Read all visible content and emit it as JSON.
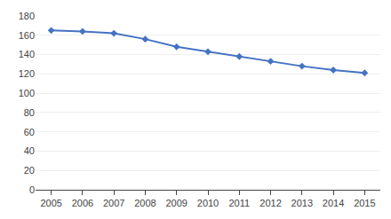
{
  "chart_data": {
    "type": "line",
    "x": [
      2005,
      2006,
      2007,
      2008,
      2009,
      2010,
      2011,
      2012,
      2013,
      2014,
      2015
    ],
    "values": [
      165,
      164,
      162,
      156,
      148,
      143,
      138,
      133,
      128,
      124,
      121
    ],
    "color": "#4472c4",
    "marker": "diamond",
    "xlim": [
      2004.5,
      2015.5
    ],
    "xticks": [
      2005,
      2006,
      2007,
      2008,
      2009,
      2010,
      2011,
      2012,
      2013,
      2014,
      2015
    ],
    "ylim": [
      0,
      180
    ],
    "yticks": [
      0,
      20,
      40,
      60,
      80,
      100,
      120,
      140,
      160,
      180
    ],
    "grid": "y"
  }
}
